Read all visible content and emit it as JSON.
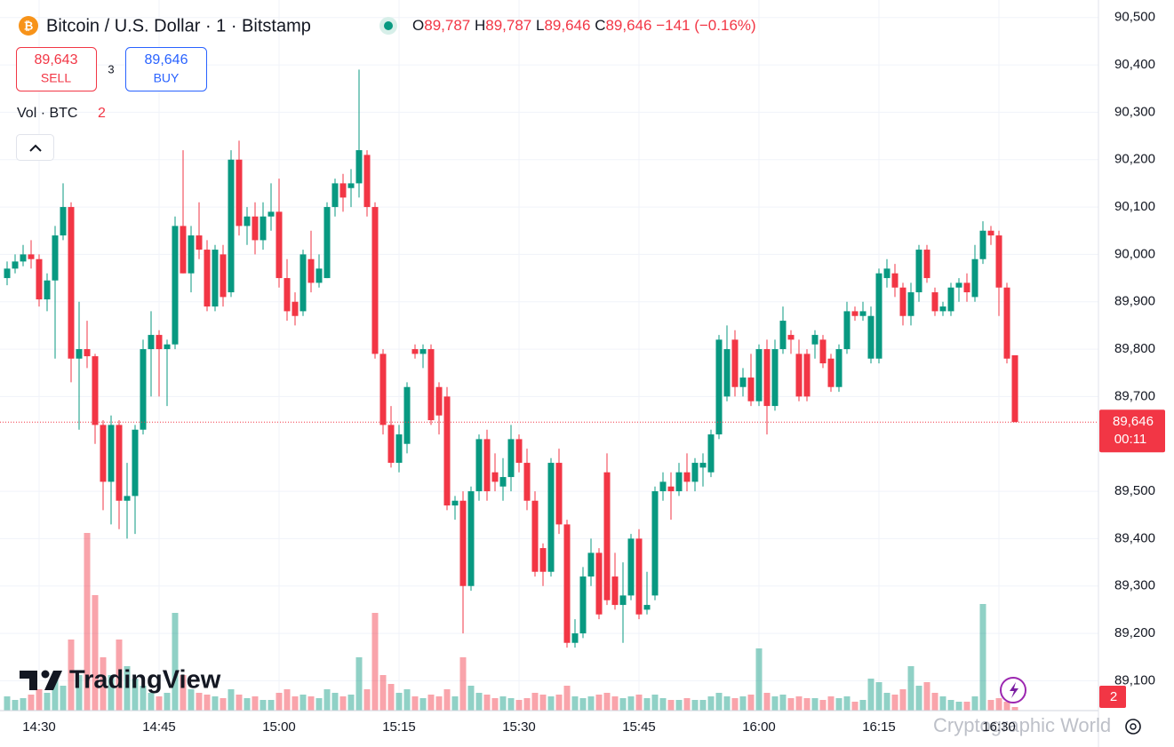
{
  "header": {
    "title": "Bitcoin / U.S. Dollar · 1 · Bitstamp",
    "ohlc": [
      {
        "label": "O",
        "value": "89,787"
      },
      {
        "label": "H",
        "value": "89,787"
      },
      {
        "label": "L",
        "value": "89,646"
      },
      {
        "label": "C",
        "value": "89,646"
      }
    ],
    "change": "−141 (−0.16%)",
    "sell": {
      "price": "89,643",
      "label": "SELL"
    },
    "spread": "3",
    "buy": {
      "price": "89,646",
      "label": "BUY"
    },
    "volume_label": "Vol · BTC",
    "brand": "TradingView",
    "watermark": "Cryptographic World"
  },
  "chart_data": {
    "type": "candlestick",
    "ylim": [
      89037,
      90537
    ],
    "yticks": [
      {
        "value": 89100,
        "label": "89,100"
      },
      {
        "value": 89200,
        "label": "89,200"
      },
      {
        "value": 89300,
        "label": "89,300"
      },
      {
        "value": 89400,
        "label": "89,400"
      },
      {
        "value": 89500,
        "label": "89,500"
      },
      {
        "value": 89700,
        "label": "89,700"
      },
      {
        "value": 89800,
        "label": "89,800"
      },
      {
        "value": 89900,
        "label": "89,900"
      },
      {
        "value": 90000,
        "label": "90,000"
      },
      {
        "value": 90100,
        "label": "90,100"
      },
      {
        "value": 90200,
        "label": "90,200"
      },
      {
        "value": 90300,
        "label": "90,300"
      },
      {
        "value": 90400,
        "label": "90,400"
      },
      {
        "value": 90500,
        "label": "90,500"
      }
    ],
    "last_price": {
      "value": 89646,
      "label": "89,646"
    },
    "countdown": "00:11",
    "up_color": "#089981",
    "down_color": "#f23645",
    "grid": true,
    "categories": [
      null,
      null,
      null,
      null,
      "14:30",
      null,
      null,
      null,
      null,
      null,
      null,
      null,
      null,
      null,
      null,
      null,
      null,
      null,
      null,
      "14:45",
      null,
      null,
      null,
      null,
      null,
      null,
      null,
      null,
      null,
      null,
      null,
      null,
      null,
      null,
      "15:00",
      null,
      null,
      null,
      null,
      null,
      null,
      null,
      null,
      null,
      null,
      null,
      null,
      null,
      null,
      "15:15",
      null,
      null,
      null,
      null,
      null,
      null,
      null,
      null,
      null,
      null,
      null,
      null,
      null,
      null,
      "15:30",
      null,
      null,
      null,
      null,
      null,
      null,
      null,
      null,
      null,
      null,
      null,
      null,
      null,
      null,
      "15:45",
      null,
      null,
      null,
      null,
      null,
      null,
      null,
      null,
      null,
      null,
      null,
      null,
      null,
      null,
      "16:00",
      null,
      null,
      null,
      null,
      null,
      null,
      null,
      null,
      null,
      null,
      null,
      null,
      null,
      null,
      "16:15",
      null,
      null,
      null,
      null,
      null,
      null,
      null,
      null,
      null,
      null,
      null,
      null,
      null,
      null,
      "16:30",
      null,
      null
    ],
    "candles": [
      {
        "o": 89950,
        "h": 89985,
        "l": 89935,
        "c": 89970,
        "v": 8
      },
      {
        "o": 89970,
        "h": 90000,
        "l": 89960,
        "c": 89985,
        "v": 6
      },
      {
        "o": 89985,
        "h": 90020,
        "l": 89975,
        "c": 90000,
        "v": 7
      },
      {
        "o": 90000,
        "h": 90030,
        "l": 89970,
        "c": 89990,
        "v": 9
      },
      {
        "o": 89990,
        "h": 90000,
        "l": 89890,
        "c": 89905,
        "v": 12
      },
      {
        "o": 89905,
        "h": 89960,
        "l": 89880,
        "c": 89945,
        "v": 10
      },
      {
        "o": 89945,
        "h": 90060,
        "l": 89780,
        "c": 90040,
        "v": 18
      },
      {
        "o": 90040,
        "h": 90150,
        "l": 90030,
        "c": 90100,
        "v": 14
      },
      {
        "o": 90100,
        "h": 90110,
        "l": 89730,
        "c": 89780,
        "v": 40
      },
      {
        "o": 89780,
        "h": 89900,
        "l": 89630,
        "c": 89800,
        "v": 20
      },
      {
        "o": 89800,
        "h": 89860,
        "l": 89760,
        "c": 89785,
        "v": 100
      },
      {
        "o": 89785,
        "h": 89790,
        "l": 89600,
        "c": 89640,
        "v": 65
      },
      {
        "o": 89640,
        "h": 89650,
        "l": 89460,
        "c": 89520,
        "v": 30
      },
      {
        "o": 89520,
        "h": 89660,
        "l": 89430,
        "c": 89640,
        "v": 20
      },
      {
        "o": 89640,
        "h": 89650,
        "l": 89420,
        "c": 89480,
        "v": 40
      },
      {
        "o": 89480,
        "h": 89560,
        "l": 89400,
        "c": 89490,
        "v": 25
      },
      {
        "o": 89490,
        "h": 89640,
        "l": 89410,
        "c": 89630,
        "v": 18
      },
      {
        "o": 89630,
        "h": 89820,
        "l": 89620,
        "c": 89800,
        "v": 14
      },
      {
        "o": 89800,
        "h": 89880,
        "l": 89700,
        "c": 89830,
        "v": 10
      },
      {
        "o": 89830,
        "h": 89840,
        "l": 89700,
        "c": 89800,
        "v": 8
      },
      {
        "o": 89800,
        "h": 89820,
        "l": 89680,
        "c": 89810,
        "v": 10
      },
      {
        "o": 89810,
        "h": 90080,
        "l": 89800,
        "c": 90060,
        "v": 55
      },
      {
        "o": 90060,
        "h": 90220,
        "l": 89960,
        "c": 89960,
        "v": 20
      },
      {
        "o": 89960,
        "h": 90060,
        "l": 89920,
        "c": 90040,
        "v": 12
      },
      {
        "o": 90040,
        "h": 90110,
        "l": 89990,
        "c": 90010,
        "v": 10
      },
      {
        "o": 90010,
        "h": 90030,
        "l": 89880,
        "c": 89890,
        "v": 9
      },
      {
        "o": 89890,
        "h": 90020,
        "l": 89880,
        "c": 90010,
        "v": 8
      },
      {
        "o": 90000,
        "h": 90020,
        "l": 89890,
        "c": 89910,
        "v": 7
      },
      {
        "o": 89920,
        "h": 90220,
        "l": 89910,
        "c": 90200,
        "v": 12
      },
      {
        "o": 90200,
        "h": 90240,
        "l": 90040,
        "c": 90060,
        "v": 9
      },
      {
        "o": 90060,
        "h": 90100,
        "l": 90020,
        "c": 90080,
        "v": 7
      },
      {
        "o": 90080,
        "h": 90110,
        "l": 90000,
        "c": 90030,
        "v": 8
      },
      {
        "o": 90030,
        "h": 90110,
        "l": 90010,
        "c": 90080,
        "v": 6
      },
      {
        "o": 90080,
        "h": 90150,
        "l": 90050,
        "c": 90090,
        "v": 6
      },
      {
        "o": 90090,
        "h": 90160,
        "l": 89930,
        "c": 89950,
        "v": 10
      },
      {
        "o": 89950,
        "h": 89990,
        "l": 89860,
        "c": 89880,
        "v": 12
      },
      {
        "o": 89900,
        "h": 89920,
        "l": 89850,
        "c": 89870,
        "v": 8
      },
      {
        "o": 89880,
        "h": 90010,
        "l": 89870,
        "c": 90000,
        "v": 9
      },
      {
        "o": 89990,
        "h": 90050,
        "l": 89920,
        "c": 89940,
        "v": 8
      },
      {
        "o": 89940,
        "h": 90000,
        "l": 89930,
        "c": 89970,
        "v": 7
      },
      {
        "o": 89950,
        "h": 90110,
        "l": 89950,
        "c": 90100,
        "v": 12
      },
      {
        "o": 90100,
        "h": 90160,
        "l": 90080,
        "c": 90150,
        "v": 10
      },
      {
        "o": 90150,
        "h": 90170,
        "l": 90090,
        "c": 90120,
        "v": 8
      },
      {
        "o": 90140,
        "h": 90180,
        "l": 90100,
        "c": 90150,
        "v": 9
      },
      {
        "o": 90150,
        "h": 90390,
        "l": 90120,
        "c": 90220,
        "v": 30
      },
      {
        "o": 90210,
        "h": 90220,
        "l": 90080,
        "c": 90100,
        "v": 12
      },
      {
        "o": 90100,
        "h": 90110,
        "l": 89780,
        "c": 89790,
        "v": 55
      },
      {
        "o": 89790,
        "h": 89800,
        "l": 89620,
        "c": 89640,
        "v": 20
      },
      {
        "o": 89640,
        "h": 89680,
        "l": 89550,
        "c": 89560,
        "v": 15
      },
      {
        "o": 89560,
        "h": 89640,
        "l": 89540,
        "c": 89620,
        "v": 10
      },
      {
        "o": 89600,
        "h": 89730,
        "l": 89580,
        "c": 89720,
        "v": 12
      },
      {
        "o": 89800,
        "h": 89810,
        "l": 89780,
        "c": 89790,
        "v": 8
      },
      {
        "o": 89790,
        "h": 89810,
        "l": 89760,
        "c": 89800,
        "v": 7
      },
      {
        "o": 89800,
        "h": 89810,
        "l": 89640,
        "c": 89650,
        "v": 9
      },
      {
        "o": 89720,
        "h": 89730,
        "l": 89620,
        "c": 89660,
        "v": 8
      },
      {
        "o": 89700,
        "h": 89720,
        "l": 89460,
        "c": 89470,
        "v": 12
      },
      {
        "o": 89470,
        "h": 89490,
        "l": 89440,
        "c": 89480,
        "v": 8
      },
      {
        "o": 89480,
        "h": 89500,
        "l": 89200,
        "c": 89300,
        "v": 30
      },
      {
        "o": 89300,
        "h": 89510,
        "l": 89290,
        "c": 89500,
        "v": 14
      },
      {
        "o": 89500,
        "h": 89620,
        "l": 89480,
        "c": 89610,
        "v": 10
      },
      {
        "o": 89610,
        "h": 89630,
        "l": 89480,
        "c": 89500,
        "v": 9
      },
      {
        "o": 89540,
        "h": 89580,
        "l": 89500,
        "c": 89520,
        "v": 7
      },
      {
        "o": 89510,
        "h": 89570,
        "l": 89480,
        "c": 89530,
        "v": 8
      },
      {
        "o": 89530,
        "h": 89640,
        "l": 89500,
        "c": 89610,
        "v": 7
      },
      {
        "o": 89610,
        "h": 89620,
        "l": 89540,
        "c": 89560,
        "v": 6
      },
      {
        "o": 89560,
        "h": 89590,
        "l": 89460,
        "c": 89480,
        "v": 7
      },
      {
        "o": 89480,
        "h": 89500,
        "l": 89320,
        "c": 89330,
        "v": 10
      },
      {
        "o": 89380,
        "h": 89390,
        "l": 89300,
        "c": 89330,
        "v": 9
      },
      {
        "o": 89330,
        "h": 89570,
        "l": 89320,
        "c": 89560,
        "v": 8
      },
      {
        "o": 89560,
        "h": 89590,
        "l": 89410,
        "c": 89430,
        "v": 9
      },
      {
        "o": 89430,
        "h": 89440,
        "l": 89170,
        "c": 89180,
        "v": 14
      },
      {
        "o": 89180,
        "h": 89230,
        "l": 89170,
        "c": 89200,
        "v": 8
      },
      {
        "o": 89200,
        "h": 89340,
        "l": 89190,
        "c": 89320,
        "v": 7
      },
      {
        "o": 89320,
        "h": 89400,
        "l": 89300,
        "c": 89370,
        "v": 8
      },
      {
        "o": 89370,
        "h": 89380,
        "l": 89230,
        "c": 89240,
        "v": 9
      },
      {
        "o": 89540,
        "h": 89580,
        "l": 89260,
        "c": 89270,
        "v": 10
      },
      {
        "o": 89320,
        "h": 89370,
        "l": 89250,
        "c": 89260,
        "v": 8
      },
      {
        "o": 89260,
        "h": 89350,
        "l": 89180,
        "c": 89280,
        "v": 7
      },
      {
        "o": 89280,
        "h": 89410,
        "l": 89270,
        "c": 89400,
        "v": 8
      },
      {
        "o": 89400,
        "h": 89420,
        "l": 89230,
        "c": 89240,
        "v": 9
      },
      {
        "o": 89250,
        "h": 89330,
        "l": 89240,
        "c": 89260,
        "v": 7
      },
      {
        "o": 89280,
        "h": 89510,
        "l": 89270,
        "c": 89500,
        "v": 9
      },
      {
        "o": 89500,
        "h": 89540,
        "l": 89480,
        "c": 89520,
        "v": 7
      },
      {
        "o": 89510,
        "h": 89540,
        "l": 89440,
        "c": 89500,
        "v": 6
      },
      {
        "o": 89500,
        "h": 89560,
        "l": 89490,
        "c": 89540,
        "v": 6
      },
      {
        "o": 89540,
        "h": 89580,
        "l": 89500,
        "c": 89520,
        "v": 7
      },
      {
        "o": 89520,
        "h": 89570,
        "l": 89500,
        "c": 89560,
        "v": 6
      },
      {
        "o": 89550,
        "h": 89580,
        "l": 89510,
        "c": 89560,
        "v": 6
      },
      {
        "o": 89540,
        "h": 89630,
        "l": 89530,
        "c": 89620,
        "v": 8
      },
      {
        "o": 89620,
        "h": 89830,
        "l": 89610,
        "c": 89820,
        "v": 10
      },
      {
        "o": 89700,
        "h": 89850,
        "l": 89690,
        "c": 89800,
        "v": 8
      },
      {
        "o": 89820,
        "h": 89840,
        "l": 89700,
        "c": 89720,
        "v": 7
      },
      {
        "o": 89720,
        "h": 89760,
        "l": 89700,
        "c": 89740,
        "v": 8
      },
      {
        "o": 89740,
        "h": 89790,
        "l": 89680,
        "c": 89690,
        "v": 9
      },
      {
        "o": 89690,
        "h": 89810,
        "l": 89680,
        "c": 89800,
        "v": 35
      },
      {
        "o": 89800,
        "h": 89820,
        "l": 89620,
        "c": 89680,
        "v": 10
      },
      {
        "o": 89680,
        "h": 89820,
        "l": 89670,
        "c": 89800,
        "v": 8
      },
      {
        "o": 89800,
        "h": 89890,
        "l": 89790,
        "c": 89860,
        "v": 9
      },
      {
        "o": 89830,
        "h": 89840,
        "l": 89790,
        "c": 89820,
        "v": 7
      },
      {
        "o": 89790,
        "h": 89820,
        "l": 89690,
        "c": 89700,
        "v": 8
      },
      {
        "o": 89790,
        "h": 89800,
        "l": 89690,
        "c": 89700,
        "v": 7
      },
      {
        "o": 89810,
        "h": 89840,
        "l": 89780,
        "c": 89830,
        "v": 7
      },
      {
        "o": 89820,
        "h": 89830,
        "l": 89760,
        "c": 89770,
        "v": 6
      },
      {
        "o": 89780,
        "h": 89790,
        "l": 89710,
        "c": 89720,
        "v": 8
      },
      {
        "o": 89720,
        "h": 89810,
        "l": 89710,
        "c": 89800,
        "v": 7
      },
      {
        "o": 89800,
        "h": 89900,
        "l": 89790,
        "c": 89880,
        "v": 8
      },
      {
        "o": 89880,
        "h": 89890,
        "l": 89860,
        "c": 89870,
        "v": 5
      },
      {
        "o": 89870,
        "h": 89900,
        "l": 89860,
        "c": 89880,
        "v": 6
      },
      {
        "o": 89780,
        "h": 89890,
        "l": 89770,
        "c": 89870,
        "v": 18
      },
      {
        "o": 89780,
        "h": 89970,
        "l": 89770,
        "c": 89960,
        "v": 16
      },
      {
        "o": 89950,
        "h": 89990,
        "l": 89930,
        "c": 89970,
        "v": 10
      },
      {
        "o": 89960,
        "h": 89980,
        "l": 89910,
        "c": 89930,
        "v": 9
      },
      {
        "o": 89930,
        "h": 89940,
        "l": 89850,
        "c": 89870,
        "v": 12
      },
      {
        "o": 89870,
        "h": 89940,
        "l": 89850,
        "c": 89920,
        "v": 25
      },
      {
        "o": 89920,
        "h": 90020,
        "l": 89900,
        "c": 90010,
        "v": 14
      },
      {
        "o": 90010,
        "h": 90020,
        "l": 89940,
        "c": 89950,
        "v": 16
      },
      {
        "o": 89920,
        "h": 89930,
        "l": 89870,
        "c": 89880,
        "v": 10
      },
      {
        "o": 89880,
        "h": 89900,
        "l": 89870,
        "c": 89890,
        "v": 8
      },
      {
        "o": 89880,
        "h": 89940,
        "l": 89870,
        "c": 89930,
        "v": 6
      },
      {
        "o": 89930,
        "h": 89950,
        "l": 89900,
        "c": 89940,
        "v": 5
      },
      {
        "o": 89940,
        "h": 89960,
        "l": 89900,
        "c": 89920,
        "v": 5
      },
      {
        "o": 89910,
        "h": 90020,
        "l": 89900,
        "c": 89990,
        "v": 8
      },
      {
        "o": 89990,
        "h": 90070,
        "l": 89980,
        "c": 90050,
        "v": 60
      },
      {
        "o": 90050,
        "h": 90060,
        "l": 90020,
        "c": 90040,
        "v": 6
      },
      {
        "o": 90040,
        "h": 90050,
        "l": 89870,
        "c": 89930,
        "v": 7
      },
      {
        "o": 89930,
        "h": 89940,
        "l": 89770,
        "c": 89780,
        "v": 5
      },
      {
        "o": 89787,
        "h": 89787,
        "l": 89646,
        "c": 89646,
        "v": 2
      }
    ]
  }
}
